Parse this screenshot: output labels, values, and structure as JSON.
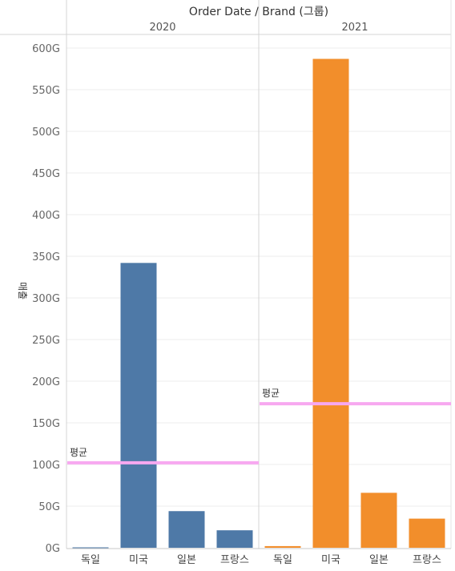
{
  "chart_data": {
    "type": "bar",
    "title": "Order Date / Brand (그룹)",
    "ylabel": "매출",
    "ylim": [
      0,
      620
    ],
    "yticks": [
      "0G",
      "50G",
      "100G",
      "150G",
      "200G",
      "250G",
      "300G",
      "350G",
      "400G",
      "450G",
      "500G",
      "550G",
      "600G"
    ],
    "categories": [
      "독일",
      "미국",
      "일본",
      "프랑스"
    ],
    "panels": [
      {
        "name": "2020",
        "color": "#4e79a7",
        "values": [
          0.5,
          342,
          44,
          21
        ],
        "average": 102,
        "average_label": "평균"
      },
      {
        "name": "2021",
        "color": "#f28e2b",
        "values": [
          2,
          587,
          66,
          35
        ],
        "average": 173,
        "average_label": "평균"
      }
    ],
    "grid": true,
    "reference_line_color": "#f7a8f0"
  }
}
